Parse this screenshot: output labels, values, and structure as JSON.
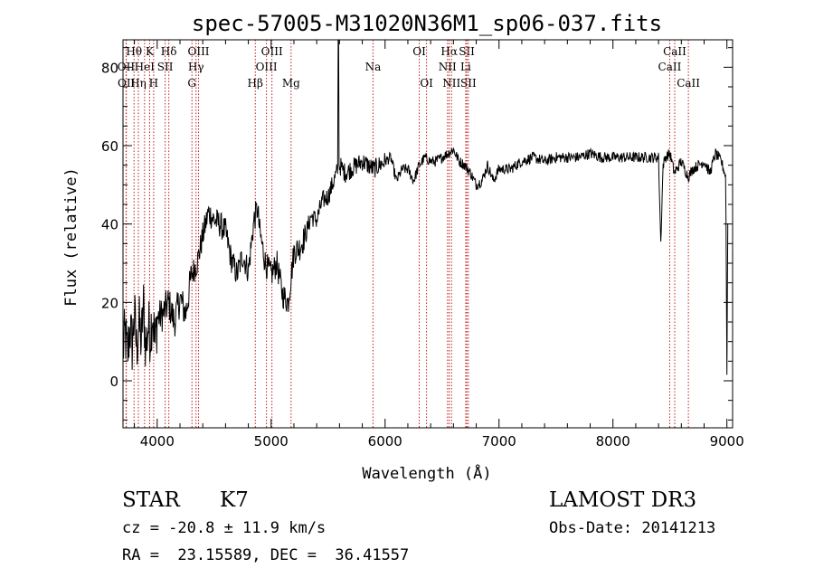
{
  "chart_data": {
    "type": "line",
    "title": "spec-57005-M31020N36M1_sp06-037.fits",
    "xlabel": "Wavelength (Å)",
    "ylabel": "Flux (relative)",
    "xlim": [
      3700,
      9050
    ],
    "ylim": [
      -12,
      87
    ],
    "x_ticks": [
      4000,
      5000,
      6000,
      7000,
      8000,
      9000
    ],
    "x_tick_labels": [
      "4000",
      "5000",
      "6000",
      "7000",
      "8000",
      "9000"
    ],
    "y_ticks": [
      0,
      20,
      40,
      60,
      80
    ],
    "y_tick_labels": [
      "0",
      "20",
      "40",
      "60",
      "80"
    ],
    "series": [
      {
        "name": "flux",
        "x": [
          3700,
          3720,
          3740,
          3760,
          3780,
          3800,
          3820,
          3840,
          3860,
          3880,
          3900,
          3920,
          3940,
          3960,
          3980,
          4000,
          4050,
          4100,
          4150,
          4200,
          4250,
          4300,
          4350,
          4400,
          4450,
          4500,
          4550,
          4600,
          4650,
          4700,
          4750,
          4800,
          4850,
          4880,
          4900,
          4950,
          5000,
          5050,
          5100,
          5150,
          5200,
          5250,
          5300,
          5350,
          5400,
          5450,
          5500,
          5550,
          5600,
          5650,
          5700,
          5750,
          5800,
          5850,
          5900,
          5950,
          6000,
          6050,
          6100,
          6150,
          6200,
          6250,
          6300,
          6350,
          6400,
          6450,
          6500,
          6550,
          6600,
          6650,
          6700,
          6750,
          6800,
          6850,
          6900,
          6950,
          7000,
          7100,
          7200,
          7300,
          7400,
          7500,
          7600,
          7700,
          7800,
          7900,
          8000,
          8100,
          8200,
          8300,
          8400,
          8420,
          8440,
          8460,
          8500,
          8540,
          8600,
          8660,
          8700,
          8750,
          8800,
          8850,
          8900,
          8950,
          8990,
          9000,
          9010
        ],
        "y": [
          8,
          12,
          6,
          14,
          9,
          17,
          8,
          15,
          10,
          19,
          8,
          14,
          12,
          18,
          9,
          16,
          17,
          20,
          15,
          21,
          17,
          27,
          30,
          37,
          43,
          41,
          40,
          38,
          31,
          27,
          32,
          28,
          41,
          44,
          38,
          30,
          27,
          30,
          22,
          20,
          33,
          34,
          37,
          42,
          41,
          46,
          47,
          51,
          55,
          53,
          54,
          55,
          56,
          55,
          54,
          55,
          56,
          57,
          51,
          54,
          54,
          51,
          55,
          57,
          56,
          56,
          57,
          58,
          59,
          56,
          55,
          53,
          50,
          51,
          55,
          51,
          54,
          54,
          56,
          57,
          56,
          57,
          57,
          57,
          58,
          57,
          57,
          57,
          57,
          57,
          57,
          35,
          55,
          57,
          58,
          53,
          56,
          52,
          54,
          55,
          56,
          53,
          58,
          56,
          52,
          2,
          50
        ]
      }
    ],
    "spike": {
      "x": 5590,
      "y": 87
    },
    "line_color": "#000000",
    "marker_color": "#c02020",
    "line_markers": [
      {
        "label": "Hθ",
        "x": 3797,
        "row": 0
      },
      {
        "label": "OII",
        "x": 3727,
        "row": 1
      },
      {
        "label": "OII",
        "x": 3729,
        "row": 2
      },
      {
        "label": "Hη",
        "x": 3835,
        "row": 2
      },
      {
        "label": "HeI",
        "x": 3889,
        "row": 1
      },
      {
        "label": "K",
        "x": 3934,
        "row": 0
      },
      {
        "label": "H",
        "x": 3969,
        "row": 2
      },
      {
        "label": "SII",
        "x": 4070,
        "row": 1
      },
      {
        "label": "Hδ",
        "x": 4102,
        "row": 0
      },
      {
        "label": "OIII",
        "x": 4363,
        "row": 0
      },
      {
        "label": "Hγ",
        "x": 4341,
        "row": 1
      },
      {
        "label": "G",
        "x": 4305,
        "row": 2
      },
      {
        "label": "Hβ",
        "x": 4861,
        "row": 2
      },
      {
        "label": "OIII",
        "x": 5007,
        "row": 0
      },
      {
        "label": "OIII",
        "x": 4959,
        "row": 1
      },
      {
        "label": "Mg",
        "x": 5175,
        "row": 2
      },
      {
        "label": "Na",
        "x": 5894,
        "row": 1
      },
      {
        "label": "OI",
        "x": 6300,
        "row": 0
      },
      {
        "label": "OI",
        "x": 6364,
        "row": 2
      },
      {
        "label": "Hα",
        "x": 6563,
        "row": 0
      },
      {
        "label": "NII",
        "x": 6548,
        "row": 1
      },
      {
        "label": "NII",
        "x": 6583,
        "row": 2
      },
      {
        "label": "SII",
        "x": 6717,
        "row": 0
      },
      {
        "label": "Li",
        "x": 6708,
        "row": 1
      },
      {
        "label": "SII",
        "x": 6731,
        "row": 2
      },
      {
        "label": "CaII",
        "x": 8542,
        "row": 0
      },
      {
        "label": "CaII",
        "x": 8498,
        "row": 1
      },
      {
        "label": "CaII",
        "x": 8662,
        "row": 2
      }
    ]
  },
  "info": {
    "class": "STAR",
    "subclass": "K7",
    "survey": "LAMOST DR3",
    "cz": "cz = -20.8 ± 11.9 km/s",
    "obs_date": "Obs-Date: 20141213",
    "coords": "RA =  23.15589, DEC =  36.41557"
  }
}
